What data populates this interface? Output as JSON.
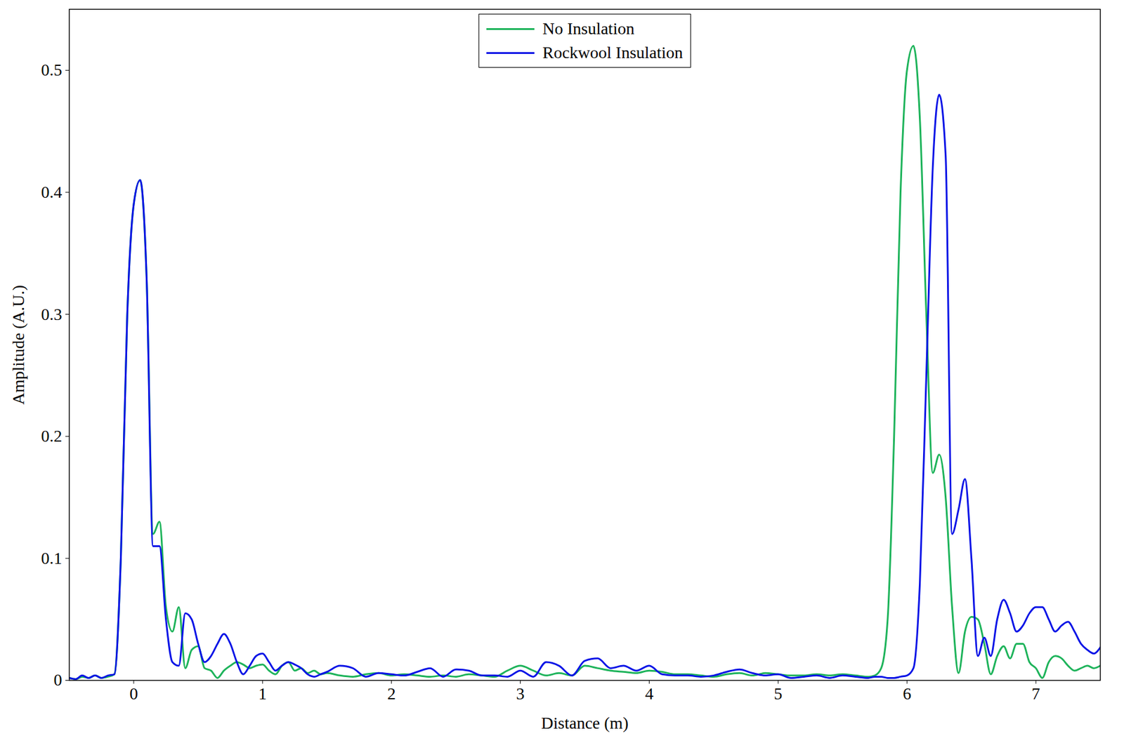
{
  "chart_data": {
    "type": "line",
    "xlabel": "Distance (m)",
    "ylabel": "Amplitude (A.U.)",
    "xlim": [
      -0.5,
      7.5
    ],
    "ylim": [
      0,
      0.55
    ],
    "xticks": [
      0,
      1,
      2,
      3,
      4,
      5,
      6,
      7
    ],
    "yticks": [
      0,
      0.1,
      0.2,
      0.3,
      0.4,
      0.5
    ],
    "grid": false,
    "legend": "top",
    "x": [
      -0.5,
      -0.45,
      -0.4,
      -0.35,
      -0.3,
      -0.25,
      -0.2,
      -0.15,
      -0.1,
      -0.05,
      0,
      0.05,
      0.1,
      0.15,
      0.2,
      0.25,
      0.3,
      0.35,
      0.4,
      0.45,
      0.5,
      0.55,
      0.6,
      0.65,
      0.7,
      0.75,
      0.8,
      0.85,
      0.9,
      0.95,
      1.0,
      1.05,
      1.1,
      1.15,
      1.2,
      1.25,
      1.3,
      1.35,
      1.4,
      1.45,
      1.5,
      1.6,
      1.7,
      1.8,
      1.9,
      2.0,
      2.1,
      2.2,
      2.3,
      2.4,
      2.5,
      2.6,
      2.7,
      2.8,
      2.9,
      3.0,
      3.1,
      3.2,
      3.3,
      3.4,
      3.5,
      3.6,
      3.7,
      3.8,
      3.9,
      4.0,
      4.1,
      4.2,
      4.3,
      4.4,
      4.5,
      4.6,
      4.7,
      4.8,
      4.9,
      5.0,
      5.1,
      5.2,
      5.3,
      5.4,
      5.5,
      5.6,
      5.7,
      5.75,
      5.8,
      5.85,
      5.9,
      5.95,
      6.0,
      6.05,
      6.1,
      6.15,
      6.2,
      6.25,
      6.3,
      6.35,
      6.4,
      6.45,
      6.5,
      6.55,
      6.6,
      6.65,
      6.7,
      6.75,
      6.8,
      6.85,
      6.9,
      6.95,
      7.0,
      7.05,
      7.1,
      7.15,
      7.2,
      7.25,
      7.3,
      7.35,
      7.4,
      7.45,
      7.5
    ],
    "series": [
      {
        "name": "No Insulation",
        "color": "#1db35a",
        "values": [
          0.002,
          0.001,
          0.003,
          0.002,
          0.004,
          0.002,
          0.003,
          0.005,
          0.1,
          0.3,
          0.39,
          0.41,
          0.33,
          0.12,
          0.13,
          0.06,
          0.04,
          0.06,
          0.01,
          0.025,
          0.028,
          0.01,
          0.008,
          0.002,
          0.008,
          0.012,
          0.015,
          0.013,
          0.01,
          0.012,
          0.013,
          0.008,
          0.005,
          0.012,
          0.015,
          0.008,
          0.01,
          0.006,
          0.008,
          0.005,
          0.006,
          0.004,
          0.003,
          0.005,
          0.006,
          0.004,
          0.005,
          0.004,
          0.003,
          0.004,
          0.003,
          0.005,
          0.004,
          0.003,
          0.008,
          0.012,
          0.008,
          0.004,
          0.006,
          0.004,
          0.012,
          0.01,
          0.008,
          0.007,
          0.006,
          0.008,
          0.007,
          0.005,
          0.005,
          0.004,
          0.003,
          0.005,
          0.006,
          0.004,
          0.006,
          0.005,
          0.004,
          0.004,
          0.005,
          0.004,
          0.005,
          0.004,
          0.003,
          0.004,
          0.01,
          0.05,
          0.2,
          0.4,
          0.5,
          0.52,
          0.46,
          0.3,
          0.17,
          0.185,
          0.15,
          0.06,
          0.006,
          0.04,
          0.052,
          0.05,
          0.03,
          0.005,
          0.02,
          0.028,
          0.018,
          0.03,
          0.03,
          0.015,
          0.01,
          0.002,
          0.015,
          0.02,
          0.018,
          0.012,
          0.008,
          0.01,
          0.012,
          0.01,
          0.012
        ]
      },
      {
        "name": "Rockwool Insulation",
        "color": "#0a14e6",
        "values": [
          0.002,
          0.001,
          0.004,
          0.002,
          0.004,
          0.002,
          0.004,
          0.005,
          0.1,
          0.3,
          0.39,
          0.41,
          0.33,
          0.11,
          0.11,
          0.05,
          0.015,
          0.012,
          0.055,
          0.05,
          0.03,
          0.015,
          0.02,
          0.03,
          0.038,
          0.03,
          0.015,
          0.005,
          0.012,
          0.02,
          0.022,
          0.015,
          0.008,
          0.012,
          0.015,
          0.013,
          0.01,
          0.005,
          0.003,
          0.005,
          0.007,
          0.012,
          0.01,
          0.003,
          0.006,
          0.005,
          0.004,
          0.007,
          0.01,
          0.003,
          0.009,
          0.008,
          0.004,
          0.004,
          0.003,
          0.008,
          0.003,
          0.015,
          0.012,
          0.004,
          0.016,
          0.018,
          0.01,
          0.012,
          0.008,
          0.012,
          0.005,
          0.004,
          0.004,
          0.003,
          0.004,
          0.007,
          0.009,
          0.006,
          0.004,
          0.005,
          0.002,
          0.003,
          0.004,
          0.002,
          0.004,
          0.003,
          0.002,
          0.003,
          0.003,
          0.002,
          0.002,
          0.003,
          0.004,
          0.01,
          0.08,
          0.25,
          0.42,
          0.48,
          0.43,
          0.12,
          0.14,
          0.165,
          0.1,
          0.02,
          0.035,
          0.02,
          0.05,
          0.066,
          0.055,
          0.04,
          0.045,
          0.055,
          0.06,
          0.06,
          0.05,
          0.04,
          0.045,
          0.048,
          0.04,
          0.03,
          0.025,
          0.022,
          0.027
        ]
      }
    ]
  }
}
